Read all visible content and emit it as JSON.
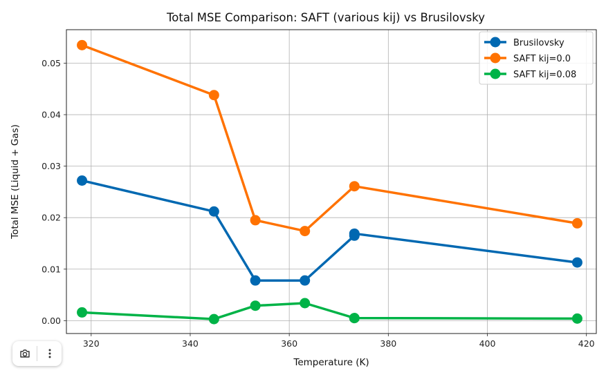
{
  "chart_data": {
    "type": "line",
    "title": "Total MSE Comparison: SAFT (various kij) vs Brusilovsky",
    "xlabel": "Temperature (K)",
    "ylabel": "Total MSE (Liquid + Gas)",
    "xlim": [
      315.0,
      422.0
    ],
    "ylim": [
      -0.0025,
      0.0565
    ],
    "xticks": [
      320,
      340,
      360,
      380,
      400,
      420
    ],
    "xtick_labels": [
      "320",
      "340",
      "360",
      "380",
      "400",
      "420"
    ],
    "yticks": [
      0.0,
      0.01,
      0.02,
      0.03,
      0.04,
      0.05
    ],
    "ytick_labels": [
      "0.00",
      "0.01",
      "0.02",
      "0.03",
      "0.04",
      "0.05"
    ],
    "grid": true,
    "legend_position": "top-right",
    "series": [
      {
        "name": "Brusilovsky",
        "color": "#0068b1",
        "x": [
          318.15,
          344.8,
          353.15,
          363.15,
          373.15,
          373.15,
          418.15
        ],
        "y": [
          0.0272,
          0.0212,
          0.0078,
          0.0078,
          0.0165,
          0.0169,
          0.0113
        ]
      },
      {
        "name": "SAFT kij=0.0",
        "color": "#ff7201",
        "x": [
          318.15,
          344.8,
          353.15,
          363.15,
          373.15,
          418.15
        ],
        "y": [
          0.0535,
          0.0438,
          0.0195,
          0.0174,
          0.0261,
          0.0189
        ]
      },
      {
        "name": "SAFT kij=0.08",
        "color": "#00b347",
        "x": [
          318.15,
          344.8,
          353.15,
          363.15,
          373.15,
          373.15,
          418.15
        ],
        "y": [
          0.0016,
          0.0003,
          0.0029,
          0.0034,
          0.0005,
          0.0005,
          0.0004
        ]
      }
    ]
  },
  "toolbar": {
    "camera_icon": "camera-icon",
    "menu_icon": "more-vertical-icon"
  }
}
